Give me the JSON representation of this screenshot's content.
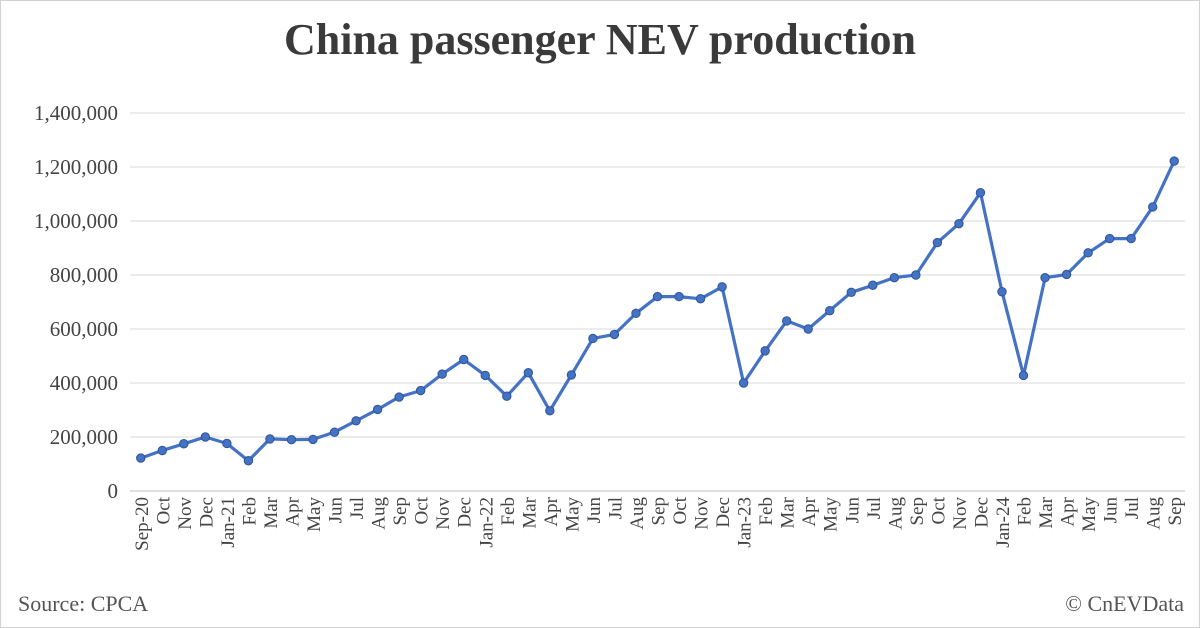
{
  "chart_data": {
    "type": "line",
    "title": "China passenger NEV production",
    "xlabel": "",
    "ylabel": "",
    "ylim": [
      0,
      1400000
    ],
    "yticks": [
      "0",
      "200,000",
      "400,000",
      "600,000",
      "800,000",
      "1,000,000",
      "1,200,000",
      "1,400,000"
    ],
    "ytick_values": [
      0,
      200000,
      400000,
      600000,
      800000,
      1000000,
      1200000,
      1400000
    ],
    "grid": true,
    "legend": "none",
    "line_color": "#4472c4",
    "categories": [
      "Sep-20",
      "Oct",
      "Nov",
      "Dec",
      "Jan-21",
      "Feb",
      "Mar",
      "Apr",
      "May",
      "Jun",
      "Jul",
      "Aug",
      "Sep",
      "Oct",
      "Nov",
      "Dec",
      "Jan-22",
      "Feb",
      "Mar",
      "Apr",
      "May",
      "Jun",
      "Jul",
      "Aug",
      "Sep",
      "Oct",
      "Nov",
      "Dec",
      "Jan-23",
      "Feb",
      "Mar",
      "Apr",
      "May",
      "Jun",
      "Jul",
      "Aug",
      "Sep",
      "Oct",
      "Nov",
      "Dec",
      "Jan-24",
      "Feb",
      "Mar",
      "Apr",
      "May",
      "Jun",
      "Jul",
      "Aug",
      "Sep"
    ],
    "series": [
      {
        "values": [
          122000,
          150000,
          175000,
          200000,
          176000,
          112000,
          193000,
          190000,
          191000,
          218000,
          260000,
          302000,
          348000,
          372000,
          433000,
          487000,
          428000,
          351000,
          438000,
          297000,
          430000,
          565000,
          580000,
          658000,
          720000,
          720000,
          712000,
          756000,
          400000,
          519000,
          630000,
          600000,
          668000,
          736000,
          762000,
          790000,
          800000,
          920000,
          990000,
          1105000,
          738000,
          428000,
          790000,
          802000,
          882000,
          935000,
          935000,
          1052000,
          1222000
        ]
      }
    ]
  },
  "footer": {
    "source": "Source: CPCA",
    "copyright": "© CnEVData"
  }
}
